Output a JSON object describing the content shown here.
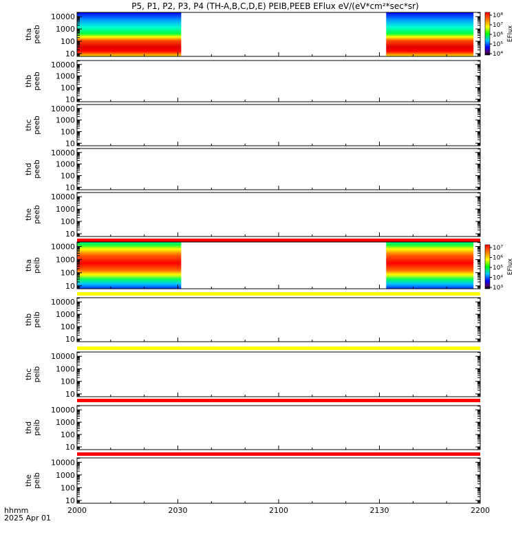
{
  "title": "P5, P1, P2, P3, P4 (TH-A,B,C,D,E) PEIB,PEEB EFlux eV/(eV*cm²*sec*sr)",
  "x_axis": {
    "label": "hhmm",
    "date": "2025 Apr 01",
    "tick_labels": [
      "2000",
      "2030",
      "2100",
      "2130",
      "2200"
    ]
  },
  "colors": {
    "red_bar": "#ff0000",
    "yellow_bar": "#ffff00",
    "spectrogram": [
      "#ff0000",
      "#ff8000",
      "#ffff00",
      "#00ff00",
      "#00c0ff",
      "#0000ff"
    ]
  },
  "chart_data": {
    "type": "heatmap",
    "x_range": [
      "2000",
      "2200"
    ],
    "y_tick_labels": [
      "10",
      "100",
      "1000",
      "10000"
    ],
    "y_scale": "log",
    "data_windows": [
      [
        "2000",
        "2031"
      ],
      [
        "2132",
        "2158"
      ]
    ],
    "panels": [
      {
        "label_top": "tha",
        "label_bottom": "peeb",
        "has_data": true,
        "status_bar": ""
      },
      {
        "label_top": "thb",
        "label_bottom": "peeb",
        "has_data": false,
        "status_bar": ""
      },
      {
        "label_top": "thc",
        "label_bottom": "peeb",
        "has_data": false,
        "status_bar": ""
      },
      {
        "label_top": "thd",
        "label_bottom": "peeb",
        "has_data": false,
        "status_bar": ""
      },
      {
        "label_top": "the",
        "label_bottom": "peeb",
        "has_data": false,
        "status_bar": "red"
      },
      {
        "label_top": "tha",
        "label_bottom": "peib",
        "has_data": true,
        "status_bar": "yellow"
      },
      {
        "label_top": "thb",
        "label_bottom": "peib",
        "has_data": false,
        "status_bar": "yellow"
      },
      {
        "label_top": "thc",
        "label_bottom": "peib",
        "has_data": false,
        "status_bar": "red"
      },
      {
        "label_top": "thd",
        "label_bottom": "peib",
        "has_data": false,
        "status_bar": "red"
      },
      {
        "label_top": "the",
        "label_bottom": "peib",
        "has_data": false,
        "status_bar": ""
      }
    ],
    "colorbars": [
      {
        "label": "EFlux",
        "tick_labels": [
          "10⁴",
          "10⁵",
          "10⁶",
          "10⁷",
          "10⁸"
        ]
      },
      {
        "label": "EFlux",
        "tick_labels": [
          "10³",
          "10⁴",
          "10⁵",
          "10⁶",
          "10⁷"
        ]
      }
    ]
  }
}
